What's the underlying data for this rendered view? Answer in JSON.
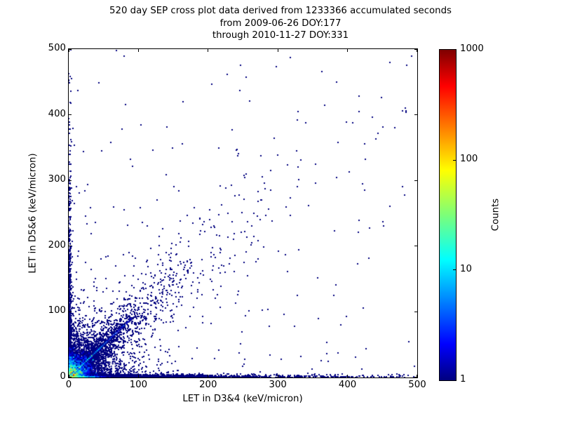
{
  "title": {
    "line1": "520 day SEP cross plot data derived from 1233366 accumulated seconds",
    "line2": "from 2009-06-26 DOY:177",
    "line3": "through 2010-11-27 DOY:331"
  },
  "chart_data": {
    "type": "scatter",
    "subtype": "2d-histogram-density",
    "title": "520 day SEP cross plot data derived from 1233366 accumulated seconds from 2009-06-26 DOY:177 through 2010-11-27 DOY:331",
    "xlabel": "LET in D3&4 (keV/micron)",
    "ylabel": "LET in D5&6 (keV/micron)",
    "xlim": [
      0,
      500
    ],
    "ylim": [
      0,
      500
    ],
    "xticks": [
      "0",
      "100",
      "200",
      "300",
      "400",
      "500"
    ],
    "yticks": [
      "0",
      "100",
      "200",
      "300",
      "400",
      "500"
    ],
    "grid": false,
    "legend": "none",
    "point_color_single_count": "#00007f",
    "colorbar": {
      "label": "Counts",
      "scale": "log",
      "min": 1,
      "max": 1000,
      "ticks": [
        "1000",
        "100",
        "10",
        "1"
      ],
      "tick_values": [
        1000,
        100,
        10,
        1
      ],
      "colormap": "jet",
      "position": "right"
    },
    "colormap_stops": [
      [
        0.0,
        [
          0,
          0,
          127
        ]
      ],
      [
        0.11,
        [
          0,
          0,
          255
        ]
      ],
      [
        0.365,
        [
          0,
          255,
          255
        ]
      ],
      [
        0.5,
        [
          124,
          255,
          121
        ]
      ],
      [
        0.635,
        [
          255,
          255,
          0
        ]
      ],
      [
        0.89,
        [
          255,
          0,
          0
        ]
      ],
      [
        1.0,
        [
          127,
          0,
          0
        ]
      ]
    ],
    "features": [
      "hot core (counts up to ~1000, red/orange/yellow) within ~15 keV/micron of origin",
      "cyan-green diagonal streak along y=x out to ~85 keV/micron",
      "diffuse blue diagonal correlation band extending toward (480,480)",
      "dense single-count band along x-axis (y~0) out to x=500",
      "dense single-count band along y-axis (x~0) out to y~450",
      "sparse isolated single-count points across the field"
    ],
    "generation": {
      "seed": 42,
      "core": {
        "bins": 35,
        "bin_size": 2,
        "a1": 1000,
        "l1": 2.8,
        "a2": 80,
        "l2": 7,
        "a3": 5,
        "l3": 18,
        "noise": 0.7
      },
      "streak": {
        "t_max": 88,
        "step": 2,
        "amp": 30,
        "decay": 30,
        "noise": 0.5,
        "side_frac": 0.2
      },
      "streak_cloud": {
        "n": 400,
        "t_mean": 35,
        "spread_base": 1.5,
        "spread_rate": 0.08
      },
      "diag_scatter": {
        "n": 1400,
        "t_mean": 60,
        "spread_base": 2,
        "spread_rate": 0.16
      },
      "diag_far": {
        "n": 160,
        "t_mean": 170,
        "spread_base": 4,
        "spread_rate": 0.16,
        "t_cap": 650
      },
      "near_field": {
        "n": 1800,
        "mean": 30
      },
      "bottom_band": {
        "n": 2600,
        "x_mean": 110,
        "y_sigma": 2.2
      },
      "left_band": {
        "n": 900,
        "y_mean": 95,
        "x_sigma": 1.8
      },
      "bottom_ridge": {
        "amp": 60,
        "decay": 14,
        "len_bins": 30,
        "noise": 0.4
      },
      "left_ridge": {
        "amp": 40,
        "decay": 12,
        "len_bins": 22,
        "noise": 0.4
      },
      "far_field": {
        "n_exp": 200,
        "mean": 220,
        "n_uniform": 70
      }
    }
  }
}
